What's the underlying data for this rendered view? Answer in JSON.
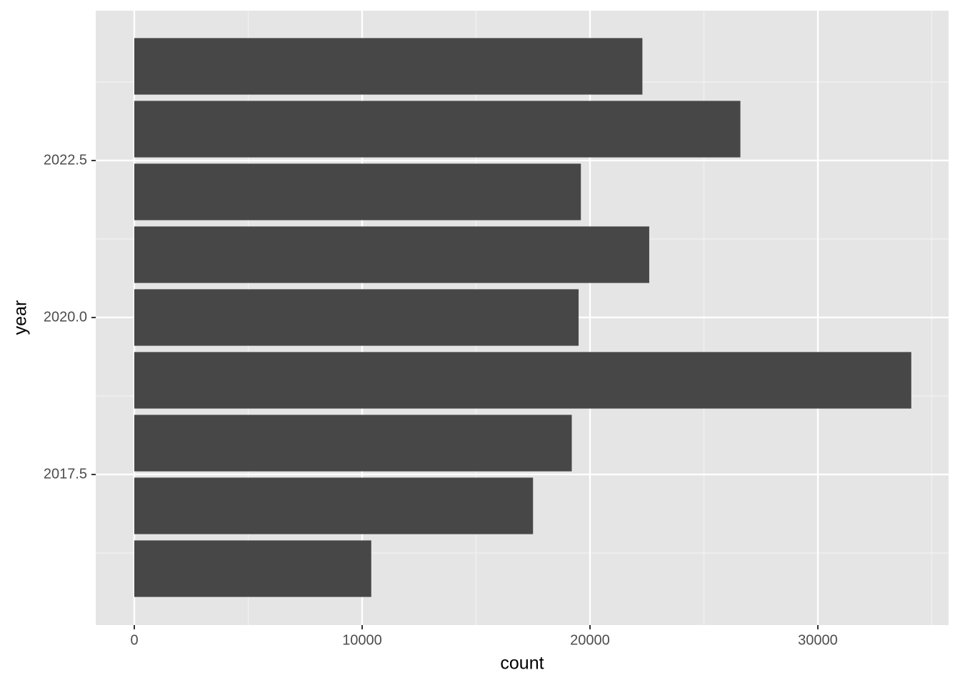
{
  "chart_data": {
    "type": "hbar",
    "x_label": "count",
    "y_label": "year",
    "categories": [
      2016,
      2017,
      2018,
      2019,
      2020,
      2021,
      2022,
      2023,
      2024
    ],
    "values": [
      10400,
      17500,
      19200,
      34100,
      19500,
      22600,
      19600,
      26600,
      22300
    ],
    "color": "#474747",
    "xlim": [
      -1693,
      35737
    ],
    "xticks": [
      0,
      10000,
      20000,
      30000
    ],
    "x_minor_ticks": [
      5000,
      15000,
      25000,
      35000
    ],
    "ylim": [
      2015.102,
      2024.886
    ],
    "yticks": [
      2017.5,
      {
        "value": 2020,
        "label": "2020.0"
      },
      2022.5
    ],
    "y_minor_ticks": [
      2016.25,
      2018.75,
      2021.25,
      2023.75
    ],
    "grid": true
  }
}
